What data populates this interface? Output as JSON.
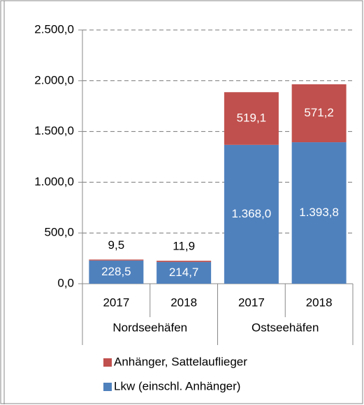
{
  "chart_data": {
    "type": "stacked_bar",
    "categories": [
      "2017",
      "2018",
      "2017",
      "2018"
    ],
    "groups": [
      "Nordseehäfen",
      "Ostseehäfen"
    ],
    "series": [
      {
        "name": "Lkw (einschl. Anhänger)",
        "color": "#4f81bd",
        "values": [
          228.5,
          214.7,
          1368.0,
          1393.8
        ],
        "value_labels": [
          "228,5",
          "214,7",
          "1.368,0",
          "1.393,8"
        ]
      },
      {
        "name": "Anhänger, Sattelauflieger",
        "color": "#c0504d",
        "values": [
          9.5,
          11.9,
          519.1,
          571.2
        ],
        "value_labels": [
          "9,5",
          "11,9",
          "519,1",
          "571,2"
        ]
      }
    ],
    "ylim": [
      0,
      2500
    ],
    "yticks": [
      {
        "value": 0,
        "label": "0,0"
      },
      {
        "value": 500,
        "label": "500,0"
      },
      {
        "value": 1000,
        "label": "1.000,0"
      },
      {
        "value": 1500,
        "label": "1.500,0"
      },
      {
        "value": 2000,
        "label": "2.000,0"
      },
      {
        "value": 2500,
        "label": "2.500,0"
      }
    ],
    "grid": true,
    "legend": "bottom"
  }
}
